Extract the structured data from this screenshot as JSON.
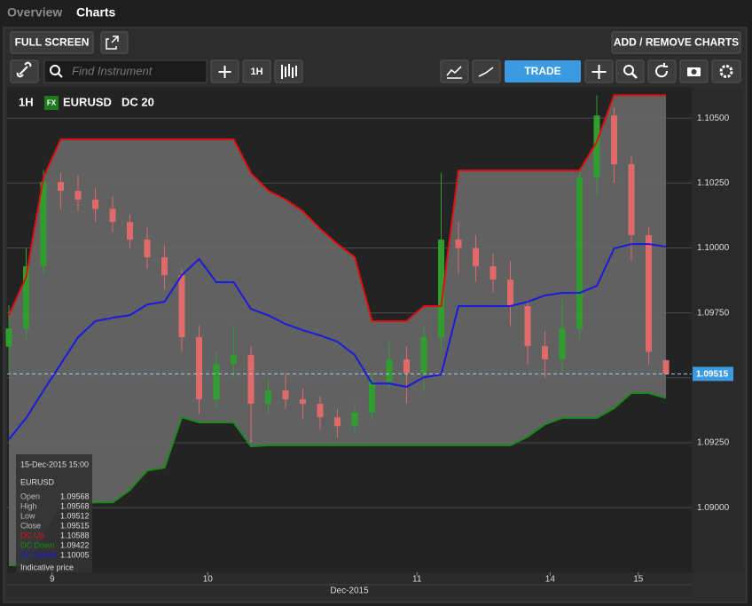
{
  "tabs": [
    "Overview",
    "Charts"
  ],
  "toolbar": {
    "full_screen": "FULL SCREEN",
    "add_remove": "ADD / REMOVE CHARTS",
    "search_placeholder": "Find Instrument",
    "interval": "1H",
    "trade": "TRADE"
  },
  "chart_data": {
    "type": "candlestick",
    "interval": "1H",
    "badge": "FX",
    "symbol": "EURUSD",
    "indicator": "DC 20",
    "up_color": "#2f9e2f",
    "down_color": "#e06a6a",
    "fill_color": "#686868",
    "open": [
      1.0962,
      1.0969,
      1.09929,
      1.10254,
      1.1022,
      1.10186,
      1.10151,
      1.101,
      1.10032,
      1.09964,
      1.09895,
      1.09656,
      1.09417,
      1.09553,
      1.09588,
      1.094,
      1.09451,
      1.09417,
      1.094,
      1.09348,
      1.09314,
      1.09366,
      1.09485,
      1.09571,
      1.09519,
      1.09656,
      1.10032,
      1.1,
      1.09929,
      1.09878,
      1.09776,
      1.09622,
      1.09571,
      1.0969,
      1.10271,
      1.1051,
      1.10322,
      1.10049,
      1.09568
    ],
    "high": [
      1.0978,
      1.1,
      1.103,
      1.1029,
      1.1028,
      1.1023,
      1.102,
      1.1013,
      1.1008,
      1.1001,
      1.0992,
      1.097,
      1.096,
      1.097,
      1.0962,
      1.095,
      1.0952,
      1.0946,
      1.0943,
      1.0938,
      1.094,
      1.0952,
      1.0964,
      1.0962,
      1.097,
      1.1029,
      1.101,
      1.1005,
      1.0998,
      1.0995,
      1.098,
      1.0968,
      1.098,
      1.103,
      1.10588,
      1.1054,
      1.1035,
      1.1008,
      1.09568
    ],
    "low": [
      1.0952,
      1.0965,
      1.099,
      1.1015,
      1.1014,
      1.101,
      1.1006,
      1.1,
      1.0992,
      1.0984,
      1.096,
      1.0936,
      1.0938,
      1.095,
      1.0925,
      1.0936,
      1.0938,
      1.0934,
      1.093,
      1.0927,
      1.0929,
      1.0934,
      1.0946,
      1.094,
      1.0945,
      1.096,
      1.099,
      1.0987,
      1.0983,
      1.097,
      1.0955,
      1.095,
      1.0952,
      1.0965,
      1.102,
      1.1025,
      1.0995,
      1.0955,
      1.09512
    ],
    "close": [
      1.0969,
      1.09929,
      1.10254,
      1.1022,
      1.10186,
      1.10151,
      1.101,
      1.10032,
      1.09964,
      1.09895,
      1.09656,
      1.09417,
      1.09553,
      1.09588,
      1.094,
      1.09451,
      1.09417,
      1.094,
      1.09348,
      1.09314,
      1.09366,
      1.09485,
      1.09571,
      1.09519,
      1.09656,
      1.10032,
      1.1,
      1.09929,
      1.09878,
      1.09776,
      1.09622,
      1.09571,
      1.0969,
      1.10271,
      1.1051,
      1.10322,
      1.10049,
      1.096,
      1.09515
    ],
    "series": [
      {
        "name": "DC Up",
        "color": "#e01010",
        "values": [
          1.09741,
          1.09888,
          1.10271,
          1.10418,
          1.10418,
          1.10418,
          1.10418,
          1.10418,
          1.10418,
          1.10418,
          1.10418,
          1.10418,
          1.10418,
          1.10418,
          1.10288,
          1.1022,
          1.10186,
          1.10141,
          1.10073,
          1.10015,
          1.09964,
          1.09718,
          1.09718,
          1.09718,
          1.09776,
          1.09776,
          1.10298,
          1.10298,
          1.10298,
          1.10298,
          1.10298,
          1.10298,
          1.10298,
          1.10298,
          1.10408,
          1.10588,
          1.10588,
          1.10588,
          1.10588
        ]
      },
      {
        "name": "DC Down",
        "color": "#1a8a1a",
        "values": [
          1.08778,
          1.08778,
          1.08904,
          1.09014,
          1.09014,
          1.0902,
          1.0902,
          1.09068,
          1.09143,
          1.09154,
          1.09348,
          1.09328,
          1.09328,
          1.09328,
          1.09236,
          1.0924,
          1.0924,
          1.0924,
          1.0924,
          1.0924,
          1.0924,
          1.0924,
          1.0924,
          1.0924,
          1.0924,
          1.0924,
          1.0924,
          1.0924,
          1.0924,
          1.0924,
          1.09273,
          1.09321,
          1.09345,
          1.09345,
          1.09345,
          1.09383,
          1.09441,
          1.09441,
          1.09422
        ]
      },
      {
        "name": "DC Middle",
        "color": "#1a1ae0",
        "values": [
          1.09263,
          1.09345,
          1.09451,
          1.09553,
          1.09656,
          1.09718,
          1.09731,
          1.09741,
          1.09782,
          1.09793,
          1.09895,
          1.09957,
          1.09868,
          1.09868,
          1.09765,
          1.09741,
          1.09707,
          1.09683,
          1.09663,
          1.09639,
          1.09588,
          1.09478,
          1.09478,
          1.09465,
          1.09502,
          1.09512,
          1.09776,
          1.09776,
          1.09776,
          1.09776,
          1.09793,
          1.09817,
          1.09827,
          1.09827,
          1.09854,
          1.09998,
          1.10015,
          1.10015,
          1.10005
        ]
      }
    ],
    "ylim": [
      1.08751,
      1.1062
    ],
    "yticks": [
      {
        "value": 1.09,
        "label": "1.09000"
      },
      {
        "value": 1.0925,
        "label": "1.09250"
      },
      {
        "value": 1.095,
        "label": "1.09500"
      },
      {
        "value": 1.0975,
        "label": "1.09750"
      },
      {
        "value": 1.1,
        "label": "1.10000"
      },
      {
        "value": 1.1025,
        "label": "1.10250"
      },
      {
        "value": 1.105,
        "label": "1.10500"
      }
    ],
    "xticks": [
      {
        "value": 2.5,
        "label": "9"
      },
      {
        "value": 11.5,
        "label": "10"
      },
      {
        "value": 23.6,
        "label": "11"
      },
      {
        "value": 31.3,
        "label": "14"
      },
      {
        "value": 36.4,
        "label": "15"
      }
    ],
    "x_label": "Dec-2015",
    "current_price": {
      "value": 1.09515,
      "label": "1.09515"
    },
    "grid": true
  },
  "tooltip": {
    "time": "15-Dec-2015 15:00",
    "symbol": "EURUSD",
    "footer": "Indicative price",
    "rows": [
      {
        "label": "Open",
        "value": "1.09568"
      },
      {
        "label": "High",
        "value": "1.09568"
      },
      {
        "label": "Low",
        "value": "1.09512"
      },
      {
        "label": "Close",
        "value": "1.09515"
      }
    ],
    "indicator_values": [
      "1.10588",
      "1.09422",
      "1.10005"
    ]
  }
}
